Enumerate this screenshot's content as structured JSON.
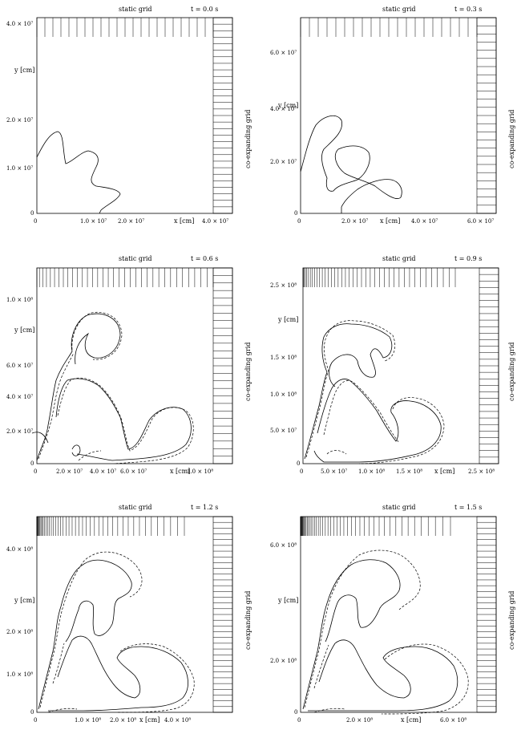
{
  "panels": [
    {
      "id": "p1",
      "top_label": "static grid",
      "time_label": "t = 0.0 s",
      "x_label": "x [cm]",
      "y_label": "y [cm]",
      "side_label": "co-expanding grid",
      "x_ticks": [
        "0",
        "1.0 × 10⁷",
        "2.0 × 10⁷",
        "4.0 × 10⁷"
      ],
      "y_ticks": [
        "0",
        "1.0 × 10⁷",
        "2.0 × 10⁷",
        "4.0 × 10⁷"
      ]
    },
    {
      "id": "p2",
      "top_label": "static grid",
      "time_label": "t = 0.3 s",
      "x_label": "x [cm]",
      "y_label": "y [cm]",
      "side_label": "co-expanding grid",
      "x_ticks": [
        "0",
        "2.0 × 10⁷",
        "4.0 × 10⁷",
        "6.0 × 10⁷"
      ],
      "y_ticks": [
        "0",
        "2.0 × 10⁷",
        "4.0 × 10⁷",
        "6.0 × 10⁷"
      ]
    },
    {
      "id": "p3",
      "top_label": "static grid",
      "time_label": "t = 0.6 s",
      "x_label": "x [cm]",
      "y_label": "y [cm]",
      "side_label": "co-expanding grid",
      "x_ticks": [
        "0",
        "2.0 × 10⁷",
        "4.0 × 10⁷",
        "6.0 × 10⁷",
        "1.0 × 10⁸"
      ],
      "y_ticks": [
        "0",
        "2.0 × 10⁷",
        "4.0 × 10⁷",
        "6.0 × 10⁷",
        "1.0 × 10⁸"
      ]
    },
    {
      "id": "p4",
      "top_label": "static grid",
      "time_label": "t = 0.9 s",
      "x_label": "x [cm]",
      "y_label": "y [cm]",
      "side_label": "co-expanding grid",
      "x_ticks": [
        "0",
        "5.0 × 10⁷",
        "1.0 × 10⁸",
        "1.5 × 10⁸",
        "2.5 × 10⁸"
      ],
      "y_ticks": [
        "0",
        "5.0 × 10⁷",
        "1.0 × 10⁸",
        "1.5 × 10⁸",
        "2.5 × 10⁸"
      ]
    },
    {
      "id": "p5",
      "top_label": "static grid",
      "time_label": "t = 1.2 s",
      "x_label": "x [cm]",
      "y_label": "y [cm]",
      "side_label": "co-expanding grid",
      "x_ticks": [
        "0",
        "1.0 × 10⁸",
        "2.0 × 10⁸",
        "4.0 × 10⁸"
      ],
      "y_ticks": [
        "0",
        "1.0 × 10⁸",
        "2.0 × 10⁸",
        "4.0 × 10⁸"
      ]
    },
    {
      "id": "p6",
      "top_label": "static grid",
      "time_label": "t = 1.5 s",
      "x_label": "x [cm]",
      "y_label": "y [cm]",
      "side_label": "co-expanding grid",
      "x_ticks": [
        "0",
        "2.0 × 10⁸",
        "6.0 × 10⁸"
      ],
      "y_ticks": [
        "0",
        "2.0 × 10⁸",
        "6.0 × 10⁸"
      ]
    }
  ]
}
